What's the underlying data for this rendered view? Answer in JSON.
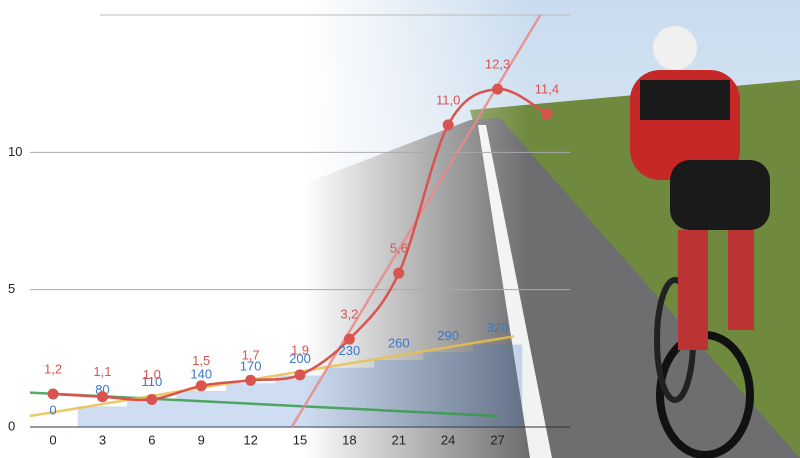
{
  "chart_data": {
    "type": "line",
    "x": [
      0,
      3,
      6,
      9,
      12,
      15,
      18,
      21,
      24,
      27,
      30
    ],
    "xlim": [
      -1.4,
      31.4
    ],
    "xticks": [
      0,
      3,
      6,
      9,
      12,
      15,
      18,
      21,
      24,
      27
    ],
    "ylim": [
      0,
      15
    ],
    "yticks": [
      0,
      5,
      10
    ],
    "y2lim": [
      0,
      1600
    ],
    "grid": true,
    "series": [
      {
        "color": "#d9534f",
        "values": [
          1.2,
          1.1,
          1.0,
          1.5,
          1.7,
          1.9,
          3.2,
          5.6,
          11.0,
          12.3,
          11.4
        ],
        "value_labels": [
          "1,2",
          "1,1",
          "1,0",
          "1,5",
          "1,7",
          "1,9",
          "3,2",
          "5,6",
          "11,0",
          "12,3",
          "11,4"
        ]
      },
      {
        "color": "#3a78c9",
        "axis": "y2",
        "values": [
          0,
          80,
          110,
          140,
          170,
          200,
          230,
          260,
          290,
          320,
          null
        ]
      }
    ],
    "trend_lines": [
      {
        "color": "#3a9a4a",
        "x": [
          -1.4,
          27
        ],
        "y": [
          1.25,
          0.4
        ]
      },
      {
        "color": "#e8c04a",
        "x": [
          -1.4,
          28
        ],
        "y": [
          0.4,
          3.3
        ]
      },
      {
        "color": "#e88a8a",
        "x": [
          14.5,
          29.6
        ],
        "y": [
          0,
          15
        ]
      }
    ]
  }
}
